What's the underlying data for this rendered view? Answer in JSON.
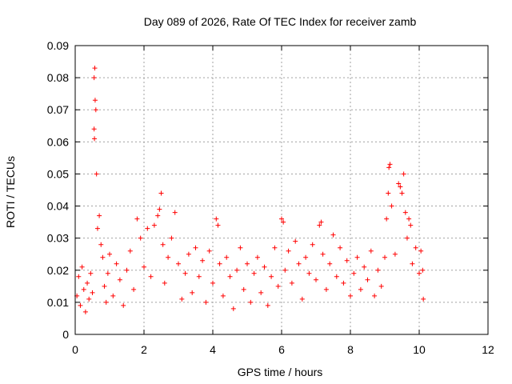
{
  "chart_data": {
    "type": "scatter",
    "title": "Day 089 of 2026, Rate Of TEC Index for receiver zamb",
    "xlabel": "GPS time / hours",
    "ylabel": "ROTI / TECUs",
    "xlim": [
      0,
      12
    ],
    "ylim": [
      0,
      0.09
    ],
    "x_ticks": [
      "0",
      "2",
      "4",
      "6",
      "8",
      "10",
      "12"
    ],
    "y_ticks": [
      "0",
      "0.01",
      "0.02",
      "0.03",
      "0.04",
      "0.05",
      "0.06",
      "0.07",
      "0.08",
      "0.09"
    ],
    "grid": true,
    "marker": "+",
    "color": "#ff0000",
    "series": [
      {
        "name": "ROTI",
        "points": [
          [
            0.05,
            0.012
          ],
          [
            0.1,
            0.018
          ],
          [
            0.15,
            0.009
          ],
          [
            0.2,
            0.021
          ],
          [
            0.25,
            0.014
          ],
          [
            0.3,
            0.007
          ],
          [
            0.35,
            0.016
          ],
          [
            0.4,
            0.011
          ],
          [
            0.45,
            0.019
          ],
          [
            0.5,
            0.013
          ],
          [
            0.55,
            0.08
          ],
          [
            0.57,
            0.083
          ],
          [
            0.58,
            0.073
          ],
          [
            0.6,
            0.07
          ],
          [
            0.55,
            0.064
          ],
          [
            0.56,
            0.061
          ],
          [
            0.62,
            0.05
          ],
          [
            0.65,
            0.033
          ],
          [
            0.7,
            0.037
          ],
          [
            0.75,
            0.028
          ],
          [
            0.8,
            0.024
          ],
          [
            0.85,
            0.015
          ],
          [
            0.9,
            0.01
          ],
          [
            0.95,
            0.019
          ],
          [
            1.0,
            0.025
          ],
          [
            1.1,
            0.012
          ],
          [
            1.2,
            0.022
          ],
          [
            1.3,
            0.017
          ],
          [
            1.4,
            0.009
          ],
          [
            1.5,
            0.02
          ],
          [
            1.6,
            0.026
          ],
          [
            1.7,
            0.014
          ],
          [
            1.8,
            0.036
          ],
          [
            1.9,
            0.03
          ],
          [
            2.0,
            0.021
          ],
          [
            2.1,
            0.033
          ],
          [
            2.2,
            0.018
          ],
          [
            2.3,
            0.034
          ],
          [
            2.4,
            0.037
          ],
          [
            2.45,
            0.039
          ],
          [
            2.5,
            0.044
          ],
          [
            2.55,
            0.028
          ],
          [
            2.6,
            0.016
          ],
          [
            2.7,
            0.024
          ],
          [
            2.8,
            0.03
          ],
          [
            2.9,
            0.038
          ],
          [
            3.0,
            0.022
          ],
          [
            3.1,
            0.011
          ],
          [
            3.2,
            0.019
          ],
          [
            3.3,
            0.025
          ],
          [
            3.4,
            0.013
          ],
          [
            3.5,
            0.027
          ],
          [
            3.6,
            0.018
          ],
          [
            3.7,
            0.023
          ],
          [
            3.8,
            0.01
          ],
          [
            3.9,
            0.026
          ],
          [
            4.0,
            0.016
          ],
          [
            4.1,
            0.036
          ],
          [
            4.15,
            0.034
          ],
          [
            4.2,
            0.022
          ],
          [
            4.3,
            0.012
          ],
          [
            4.4,
            0.024
          ],
          [
            4.5,
            0.018
          ],
          [
            4.6,
            0.008
          ],
          [
            4.7,
            0.02
          ],
          [
            4.8,
            0.027
          ],
          [
            4.9,
            0.014
          ],
          [
            5.0,
            0.022
          ],
          [
            5.1,
            0.01
          ],
          [
            5.2,
            0.019
          ],
          [
            5.3,
            0.024
          ],
          [
            5.4,
            0.013
          ],
          [
            5.5,
            0.021
          ],
          [
            5.6,
            0.009
          ],
          [
            5.7,
            0.018
          ],
          [
            5.8,
            0.027
          ],
          [
            5.9,
            0.015
          ],
          [
            6.0,
            0.036
          ],
          [
            6.05,
            0.035
          ],
          [
            6.1,
            0.02
          ],
          [
            6.2,
            0.026
          ],
          [
            6.3,
            0.016
          ],
          [
            6.4,
            0.029
          ],
          [
            6.5,
            0.022
          ],
          [
            6.6,
            0.011
          ],
          [
            6.7,
            0.024
          ],
          [
            6.8,
            0.019
          ],
          [
            6.9,
            0.028
          ],
          [
            7.0,
            0.017
          ],
          [
            7.1,
            0.034
          ],
          [
            7.15,
            0.035
          ],
          [
            7.2,
            0.025
          ],
          [
            7.3,
            0.014
          ],
          [
            7.4,
            0.022
          ],
          [
            7.5,
            0.031
          ],
          [
            7.6,
            0.018
          ],
          [
            7.7,
            0.027
          ],
          [
            7.8,
            0.016
          ],
          [
            7.9,
            0.023
          ],
          [
            8.0,
            0.012
          ],
          [
            8.1,
            0.019
          ],
          [
            8.2,
            0.024
          ],
          [
            8.3,
            0.014
          ],
          [
            8.4,
            0.021
          ],
          [
            8.5,
            0.017
          ],
          [
            8.6,
            0.026
          ],
          [
            8.7,
            0.012
          ],
          [
            8.8,
            0.02
          ],
          [
            8.9,
            0.015
          ],
          [
            9.0,
            0.024
          ],
          [
            9.05,
            0.036
          ],
          [
            9.1,
            0.044
          ],
          [
            9.12,
            0.052
          ],
          [
            9.15,
            0.053
          ],
          [
            9.2,
            0.04
          ],
          [
            9.3,
            0.025
          ],
          [
            9.4,
            0.047
          ],
          [
            9.45,
            0.046
          ],
          [
            9.5,
            0.044
          ],
          [
            9.55,
            0.05
          ],
          [
            9.6,
            0.038
          ],
          [
            9.65,
            0.03
          ],
          [
            9.7,
            0.036
          ],
          [
            9.75,
            0.034
          ],
          [
            9.8,
            0.022
          ],
          [
            9.9,
            0.027
          ],
          [
            10.0,
            0.019
          ],
          [
            10.05,
            0.026
          ],
          [
            10.1,
            0.02
          ],
          [
            10.12,
            0.011
          ]
        ]
      }
    ]
  }
}
